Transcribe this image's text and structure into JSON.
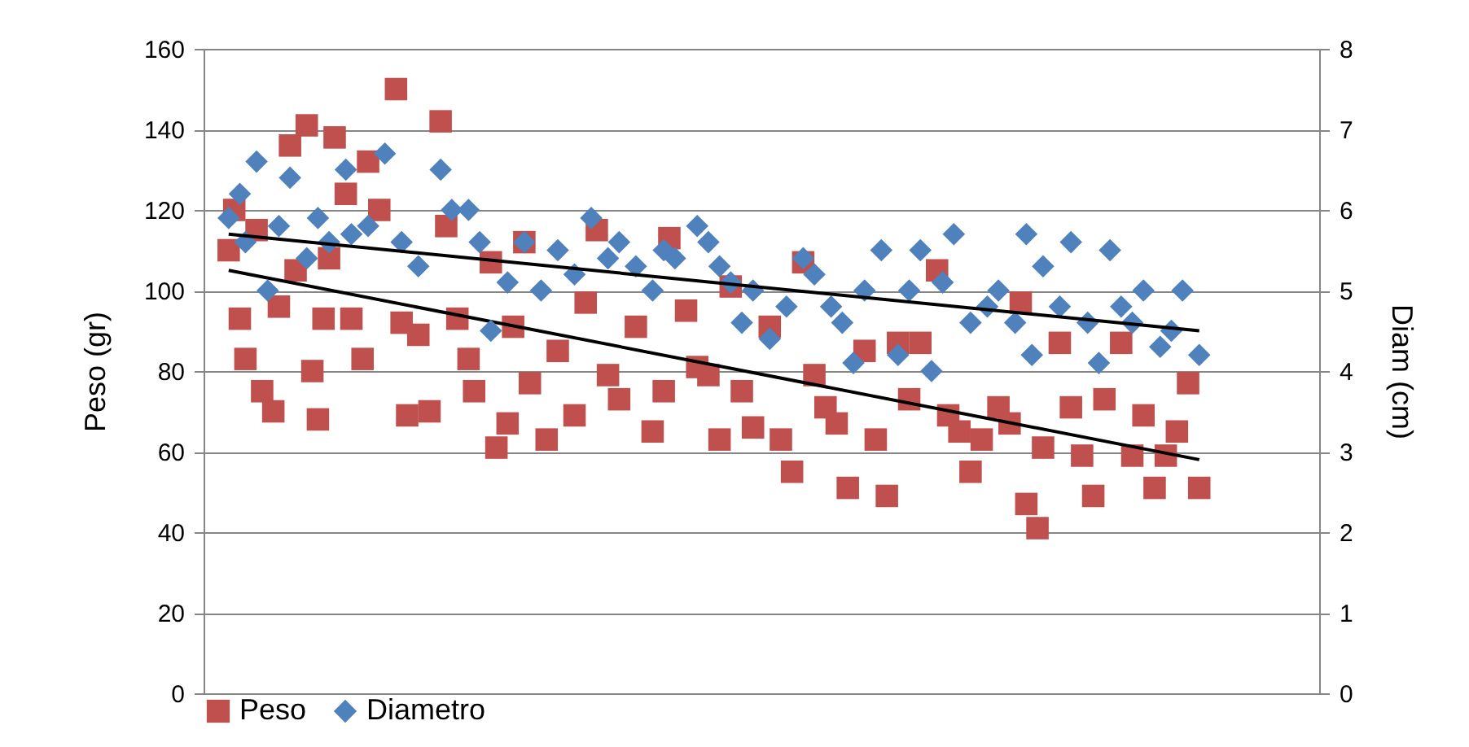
{
  "chart_data": {
    "type": "scatter",
    "ylabel": "Peso (gr)",
    "y2label": "Diam (cm)",
    "categories": [
      null,
      null,
      null,
      null,
      null,
      null,
      null,
      null,
      null,
      null,
      null,
      null,
      null,
      null,
      null,
      null,
      null,
      null,
      null,
      null,
      null,
      null,
      null,
      null,
      null,
      null,
      null,
      null,
      null,
      null,
      null,
      null,
      null,
      null,
      null,
      null,
      null,
      null,
      null,
      null,
      null,
      null,
      null,
      null,
      null,
      null,
      null,
      null,
      null,
      null,
      null,
      null,
      null,
      null,
      null,
      null,
      null,
      null,
      null,
      null,
      null,
      null,
      null,
      null,
      null,
      null,
      null,
      null,
      null,
      null,
      null,
      null,
      null,
      null,
      null,
      null,
      null,
      null,
      null,
      null,
      null,
      null,
      null,
      null,
      null,
      null,
      null,
      null,
      null,
      null,
      null,
      null,
      null,
      null,
      null,
      null,
      null,
      null,
      null,
      null,
      null,
      null,
      null,
      null,
      null,
      null,
      null,
      null,
      null,
      null,
      null,
      null,
      null,
      null,
      null,
      null,
      null,
      null,
      null,
      null,
      null,
      null,
      null,
      null,
      null,
      null,
      null,
      null,
      null,
      null,
      null,
      null,
      null,
      null,
      null,
      null,
      null,
      null,
      null,
      null,
      null,
      null,
      null,
      null,
      null,
      null,
      null,
      null,
      null,
      null,
      null,
      null,
      null,
      null,
      null,
      null,
      null,
      null,
      null,
      null,
      null,
      null,
      null,
      null,
      null,
      null,
      null,
      null,
      null,
      null,
      null,
      null,
      null,
      null,
      null,
      null,
      null,
      null,
      null,
      null,
      null,
      null,
      null,
      null,
      null,
      null,
      null,
      null,
      null,
      null,
      null,
      null,
      null,
      null,
      null,
      null,
      null,
      null,
      null,
      null
    ],
    "ylim": [
      0,
      160
    ],
    "yticks": [
      0,
      20,
      40,
      60,
      80,
      100,
      120,
      140,
      160
    ],
    "y2lim": [
      0,
      8
    ],
    "y2ticks": [
      0,
      1,
      2,
      3,
      4,
      5,
      6,
      7,
      8
    ],
    "grid": "y",
    "legend": "bottom",
    "series": [
      {
        "name": "Peso",
        "marker": "square",
        "color": "#c0504d",
        "values": [
          null,
          null,
          null,
          null,
          110,
          120,
          93,
          83,
          null,
          115,
          75,
          null,
          70,
          96,
          null,
          136,
          105,
          null,
          141,
          80,
          68,
          93,
          108,
          138,
          null,
          124,
          93,
          null,
          83,
          132,
          null,
          120,
          null,
          null,
          150,
          92,
          69,
          null,
          89,
          null,
          70,
          null,
          142,
          116,
          null,
          93,
          null,
          83,
          75,
          null,
          null,
          107,
          61,
          null,
          67,
          91,
          null,
          112,
          77,
          null,
          null,
          63,
          null,
          85,
          null,
          null,
          69,
          null,
          97,
          null,
          115,
          null,
          79,
          null,
          73,
          null,
          null,
          91,
          null,
          null,
          65,
          null,
          75,
          113,
          null,
          null,
          95,
          null,
          81,
          null,
          79,
          null,
          63,
          null,
          101,
          null,
          75,
          null,
          66,
          null,
          null,
          91,
          null,
          63,
          null,
          55,
          null,
          107,
          null,
          79,
          null,
          71,
          null,
          67,
          null,
          51,
          null,
          null,
          85,
          null,
          63,
          null,
          49,
          null,
          87,
          null,
          73,
          null,
          87,
          null,
          null,
          105,
          null,
          69,
          null,
          65,
          null,
          55,
          null,
          63,
          null,
          null,
          71,
          null,
          67,
          null,
          97,
          47,
          null,
          41,
          61,
          null,
          null,
          87,
          null,
          71,
          null,
          59,
          null,
          49,
          null,
          73,
          null,
          null,
          87,
          null,
          59,
          null,
          69,
          null,
          51,
          null,
          59,
          null,
          65,
          null,
          77,
          null,
          51,
          null,
          null,
          null,
          null,
          null,
          null,
          null,
          null,
          null,
          null,
          null,
          null,
          null,
          null,
          null,
          null,
          null,
          null,
          null,
          null,
          null
        ]
      },
      {
        "name": "Diametro",
        "marker": "diamond",
        "axis": "y2",
        "color": "#4f81bd",
        "values": [
          null,
          null,
          null,
          null,
          5.9,
          null,
          6.2,
          5.6,
          null,
          6.6,
          null,
          5.0,
          null,
          5.8,
          null,
          6.4,
          null,
          null,
          5.4,
          null,
          5.9,
          null,
          5.6,
          null,
          null,
          6.5,
          5.7,
          null,
          null,
          5.8,
          null,
          null,
          6.7,
          null,
          null,
          5.6,
          null,
          null,
          5.3,
          null,
          null,
          null,
          6.5,
          null,
          6.0,
          null,
          null,
          6.0,
          null,
          5.6,
          null,
          4.5,
          null,
          null,
          5.1,
          null,
          null,
          5.6,
          null,
          null,
          5.0,
          null,
          null,
          5.5,
          null,
          null,
          5.2,
          null,
          null,
          5.9,
          null,
          null,
          5.4,
          null,
          5.6,
          null,
          null,
          5.3,
          null,
          null,
          5.0,
          null,
          5.5,
          null,
          5.4,
          null,
          null,
          null,
          5.8,
          null,
          5.6,
          null,
          5.3,
          null,
          5.1,
          null,
          4.6,
          null,
          5.0,
          null,
          null,
          4.4,
          null,
          null,
          4.8,
          null,
          null,
          5.4,
          null,
          5.2,
          null,
          null,
          4.8,
          null,
          4.6,
          null,
          4.1,
          null,
          5.0,
          null,
          null,
          5.5,
          null,
          null,
          4.2,
          null,
          5.0,
          null,
          5.5,
          null,
          4.0,
          null,
          5.1,
          null,
          5.7,
          null,
          null,
          4.6,
          null,
          null,
          4.8,
          null,
          5.0,
          null,
          null,
          4.6,
          null,
          5.7,
          4.2,
          null,
          5.3,
          null,
          null,
          4.8,
          null,
          5.6,
          null,
          null,
          4.6,
          null,
          4.1,
          null,
          5.5,
          null,
          4.8,
          null,
          4.6,
          null,
          5.0,
          null,
          null,
          4.3,
          null,
          4.5,
          null,
          5.0,
          null,
          null,
          4.2,
          null,
          null,
          null,
          null,
          null,
          null,
          null,
          null,
          null,
          null,
          null,
          null,
          null,
          null,
          null,
          null,
          null,
          null,
          null,
          null,
          null
        ]
      },
      {
        "type": "line",
        "color": "#000000",
        "values": [
          null,
          null,
          null,
          null,
          105,
          null,
          null,
          null,
          null,
          null,
          null,
          null,
          null,
          null,
          null,
          null,
          null,
          null,
          null,
          null,
          null,
          null,
          null,
          null,
          null,
          null,
          null,
          null,
          null,
          null,
          null,
          null,
          null,
          null,
          null,
          null,
          null,
          null,
          null,
          null,
          null,
          null,
          null,
          null,
          null,
          null,
          null,
          null,
          null,
          null,
          null,
          null,
          null,
          null,
          null,
          null,
          null,
          null,
          null,
          null,
          null,
          null,
          null,
          null,
          null,
          null,
          null,
          null,
          null,
          null,
          null,
          null,
          null,
          null,
          null,
          null,
          null,
          null,
          null,
          null,
          null,
          null,
          null,
          null,
          null,
          null,
          null,
          null,
          null,
          null,
          null,
          null,
          null,
          null,
          null,
          null,
          null,
          null,
          null,
          null,
          null,
          null,
          null,
          null,
          null,
          null,
          null,
          null,
          null,
          null,
          null,
          null,
          null,
          null,
          null,
          null,
          null,
          null,
          null,
          null,
          null,
          null,
          null,
          null,
          null,
          null,
          null,
          null,
          null,
          null,
          null,
          null,
          null,
          null,
          null,
          null,
          null,
          null,
          null,
          null,
          null,
          null,
          null,
          null,
          null,
          null,
          null,
          null,
          null,
          null,
          null,
          null,
          null,
          null,
          null,
          null,
          null,
          null,
          null,
          null,
          null,
          null,
          null,
          null,
          null,
          null,
          null,
          null,
          null,
          null,
          null,
          null,
          null,
          null,
          null,
          null,
          null,
          null,
          58,
          null,
          null,
          null,
          null,
          null,
          null,
          null,
          null,
          null,
          null,
          null,
          null,
          null,
          null,
          null,
          null,
          null,
          null,
          null,
          null,
          null
        ]
      },
      {
        "type": "line",
        "axis": "y2",
        "color": "#000000",
        "values": [
          null,
          null,
          null,
          null,
          5.7,
          null,
          null,
          null,
          null,
          null,
          null,
          null,
          null,
          null,
          null,
          null,
          null,
          null,
          null,
          null,
          null,
          null,
          null,
          null,
          null,
          null,
          null,
          null,
          null,
          null,
          null,
          null,
          null,
          null,
          null,
          null,
          null,
          null,
          null,
          null,
          null,
          null,
          null,
          null,
          null,
          null,
          null,
          null,
          null,
          null,
          null,
          null,
          null,
          null,
          null,
          null,
          null,
          null,
          null,
          null,
          null,
          null,
          null,
          null,
          null,
          null,
          null,
          null,
          null,
          null,
          null,
          null,
          null,
          null,
          null,
          null,
          null,
          null,
          null,
          null,
          null,
          null,
          null,
          null,
          null,
          null,
          null,
          null,
          null,
          null,
          null,
          null,
          null,
          null,
          null,
          null,
          null,
          null,
          null,
          null,
          null,
          null,
          null,
          null,
          null,
          null,
          null,
          null,
          null,
          null,
          null,
          null,
          null,
          null,
          null,
          null,
          null,
          null,
          null,
          null,
          null,
          null,
          null,
          null,
          null,
          null,
          null,
          null,
          null,
          null,
          null,
          null,
          null,
          null,
          null,
          null,
          null,
          null,
          null,
          null,
          null,
          null,
          null,
          null,
          null,
          null,
          null,
          null,
          null,
          null,
          null,
          null,
          null,
          null,
          null,
          null,
          null,
          null,
          null,
          null,
          null,
          null,
          null,
          null,
          null,
          null,
          null,
          null,
          null,
          null,
          null,
          null,
          null,
          null,
          null,
          null,
          null,
          null,
          4.5,
          null,
          null,
          null,
          null,
          null,
          null,
          null,
          null,
          null,
          null,
          null,
          null,
          null,
          null,
          null,
          null,
          null,
          null,
          null,
          null,
          null
        ]
      }
    ]
  }
}
